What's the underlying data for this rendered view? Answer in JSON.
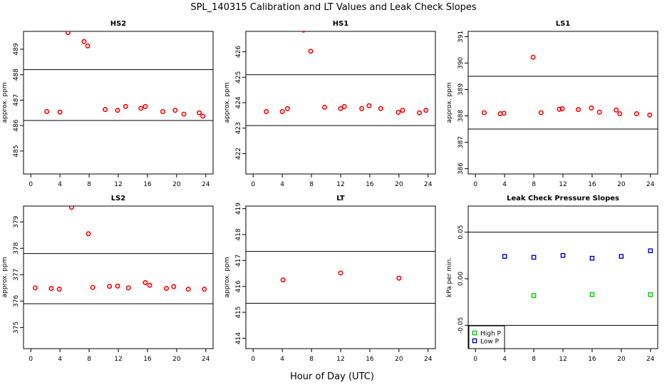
{
  "figure": {
    "title": "SPL_140315  Calibration and LT Values and Leak Check Slopes",
    "xlabel": "Hour of Day (UTC)"
  },
  "colors": {
    "calibration_marker": "#ff0000",
    "high_p": "#00cc00",
    "low_p": "#0000cc",
    "axis": "#000000"
  },
  "chart_data": [
    {
      "id": "hs2",
      "type": "scatter",
      "title": "HS2",
      "ylabel": "approx. ppm",
      "xlim": [
        -1,
        25
      ],
      "ylim": [
        484.1,
        489.7
      ],
      "xticks": [
        "0",
        "4",
        "8",
        "12",
        "16",
        "20",
        "24"
      ],
      "yticks": [
        "485",
        "486",
        "487",
        "488",
        "489"
      ],
      "hlines": [
        488.2,
        486.2
      ],
      "series": [
        {
          "marker": "circle",
          "x": [
            2.2,
            4.0,
            5.1,
            7.3,
            7.8,
            10.2,
            11.9,
            13.0,
            15.1,
            15.7,
            18.1,
            19.8,
            21.0,
            23.1,
            23.6
          ],
          "y": [
            486.55,
            486.53,
            489.65,
            489.3,
            489.13,
            486.63,
            486.6,
            486.75,
            486.68,
            486.75,
            486.55,
            486.6,
            486.45,
            486.5,
            486.37
          ]
        }
      ]
    },
    {
      "id": "hs1",
      "type": "scatter",
      "title": "HS1",
      "ylabel": "approx. ppm",
      "xlim": [
        -1,
        25
      ],
      "ylim": [
        421.2,
        426.8
      ],
      "xticks": [
        "0",
        "4",
        "8",
        "12",
        "16",
        "20",
        "24"
      ],
      "yticks": [
        "422",
        "423",
        "424",
        "425",
        "426"
      ],
      "hlines": [
        425.1,
        423.1
      ],
      "series": [
        {
          "marker": "circle",
          "x": [
            1.8,
            4.0,
            4.7,
            6.9,
            7.9,
            9.8,
            12.0,
            12.5,
            14.9,
            15.9,
            17.5,
            19.9,
            20.5,
            22.8,
            23.7
          ],
          "y": [
            423.65,
            423.65,
            423.77,
            426.85,
            426.02,
            423.82,
            423.77,
            423.85,
            423.77,
            423.88,
            423.77,
            423.62,
            423.7,
            423.6,
            423.7
          ]
        }
      ]
    },
    {
      "id": "ls1",
      "type": "scatter",
      "title": "LS1",
      "ylabel": "approx. ppm",
      "xlim": [
        -1,
        25
      ],
      "ylim": [
        385.8,
        391.2
      ],
      "xticks": [
        "0",
        "4",
        "8",
        "12",
        "16",
        "20",
        "24"
      ],
      "yticks": [
        "386",
        "387",
        "388",
        "389",
        "390",
        "391"
      ],
      "hlines": [
        389.5,
        387.5
      ],
      "series": [
        {
          "marker": "circle",
          "x": [
            1.2,
            3.4,
            3.9,
            7.9,
            9.0,
            11.5,
            11.9,
            14.1,
            15.9,
            17.0,
            19.3,
            19.8,
            22.1,
            23.9
          ],
          "y": [
            388.12,
            388.08,
            388.1,
            390.22,
            388.12,
            388.25,
            388.27,
            388.24,
            388.3,
            388.14,
            388.22,
            388.08,
            388.08,
            388.03
          ]
        }
      ]
    },
    {
      "id": "ls2",
      "type": "scatter",
      "title": "LS2",
      "ylabel": "approx. ppm",
      "xlim": [
        -1,
        25
      ],
      "ylim": [
        374.2,
        379.6
      ],
      "xticks": [
        "0",
        "4",
        "8",
        "12",
        "16",
        "20",
        "24"
      ],
      "yticks": [
        "375",
        "376",
        "377",
        "378",
        "379"
      ],
      "hlines": [
        377.8,
        375.9
      ],
      "series": [
        {
          "marker": "circle",
          "x": [
            0.6,
            2.8,
            3.9,
            5.6,
            7.9,
            8.5,
            10.8,
            11.9,
            13.4,
            15.7,
            16.3,
            18.6,
            19.6,
            21.6,
            23.8
          ],
          "y": [
            376.5,
            376.48,
            376.45,
            379.55,
            378.55,
            376.52,
            376.56,
            376.57,
            376.5,
            376.7,
            376.6,
            376.48,
            376.55,
            376.45,
            376.45
          ]
        }
      ]
    },
    {
      "id": "lt",
      "type": "scatter",
      "title": "LT",
      "ylabel": "approx. ppm",
      "xlim": [
        -1,
        25
      ],
      "ylim": [
        413.6,
        419.1
      ],
      "xticks": [
        "0",
        "4",
        "8",
        "12",
        "16",
        "20",
        "24"
      ],
      "yticks": [
        "414",
        "415",
        "416",
        "417",
        "418",
        "419"
      ],
      "hlines": [
        417.35,
        415.35
      ],
      "series": [
        {
          "marker": "circle",
          "x": [
            4.1,
            12.0,
            20.0
          ],
          "y": [
            416.25,
            416.52,
            416.32
          ]
        }
      ]
    },
    {
      "id": "leak",
      "type": "scatter",
      "title": "Leak Check Pressure Slopes",
      "ylabel": "kPa per min.",
      "xlim": [
        -1,
        25
      ],
      "ylim": [
        -0.075,
        0.078
      ],
      "xticks": [
        "0",
        "4",
        "8",
        "12",
        "16",
        "20",
        "24"
      ],
      "yticks": [
        "-0.05",
        "0.00",
        "0.05"
      ],
      "hlines": [
        0.05,
        -0.05
      ],
      "legend": {
        "placement": "bottom-left",
        "entries": [
          "High P",
          "Low P"
        ]
      },
      "series": [
        {
          "name": "High P",
          "marker": "square",
          "color": "#00cc00",
          "x": [
            8.0,
            16.0,
            24.0
          ],
          "y": [
            -0.018,
            -0.017,
            -0.017
          ]
        },
        {
          "name": "Low P",
          "marker": "square",
          "color": "#0000cc",
          "x": [
            4.0,
            8.0,
            12.0,
            16.0,
            20.0,
            24.0
          ],
          "y": [
            0.024,
            0.023,
            0.025,
            0.022,
            0.024,
            0.03
          ]
        }
      ]
    }
  ]
}
